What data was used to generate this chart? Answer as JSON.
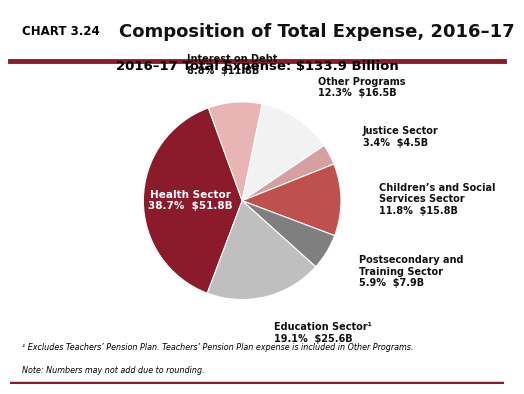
{
  "chart_label": "CHART 3.24",
  "title": "Composition of Total Expense, 2016–17",
  "subtitle": "2016–17 Total Expense: $133.9 Billion",
  "footnote1": "¹ Excludes Teachers’ Pension Plan. Teachers’ Pension Plan expense is included in Other Programs.",
  "footnote2": "Note: Numbers may not add due to rounding.",
  "slices": [
    {
      "label": "Health Sector",
      "pct": 38.7,
      "value": "$51.8B",
      "color": "#8B1A2A",
      "label_inside": true
    },
    {
      "label": "Interest on Debt",
      "pct": 8.8,
      "value": "$11.8B",
      "color": "#E8B4B4",
      "label_inside": false
    },
    {
      "label": "Other Programs",
      "pct": 12.3,
      "value": "$16.5B",
      "color": "#F2F2F2",
      "label_inside": false
    },
    {
      "label": "Justice Sector",
      "pct": 3.4,
      "value": "$4.5B",
      "color": "#D4A0A0",
      "label_inside": false
    },
    {
      "label": "Children’s and Social\nServices Sector",
      "pct": 11.8,
      "value": "$15.8B",
      "color": "#C0504D",
      "label_inside": false
    },
    {
      "label": "Postsecondary and\nTraining Sector",
      "pct": 5.9,
      "value": "$7.9B",
      "color": "#7F7F7F",
      "label_inside": false
    },
    {
      "label": "Education Sector¹",
      "pct": 19.1,
      "value": "$25.6B",
      "color": "#BFBFBF",
      "label_inside": false
    }
  ],
  "header_bg": "#F0EBD8",
  "border_color": "#8B1A2A",
  "fig_bg": "#FFFFFF",
  "label_fontsize": 7.0,
  "subtitle_fontsize": 9.5,
  "title_fontsize": 13,
  "chart_label_fontsize": 8.5,
  "startangle": 249.32
}
